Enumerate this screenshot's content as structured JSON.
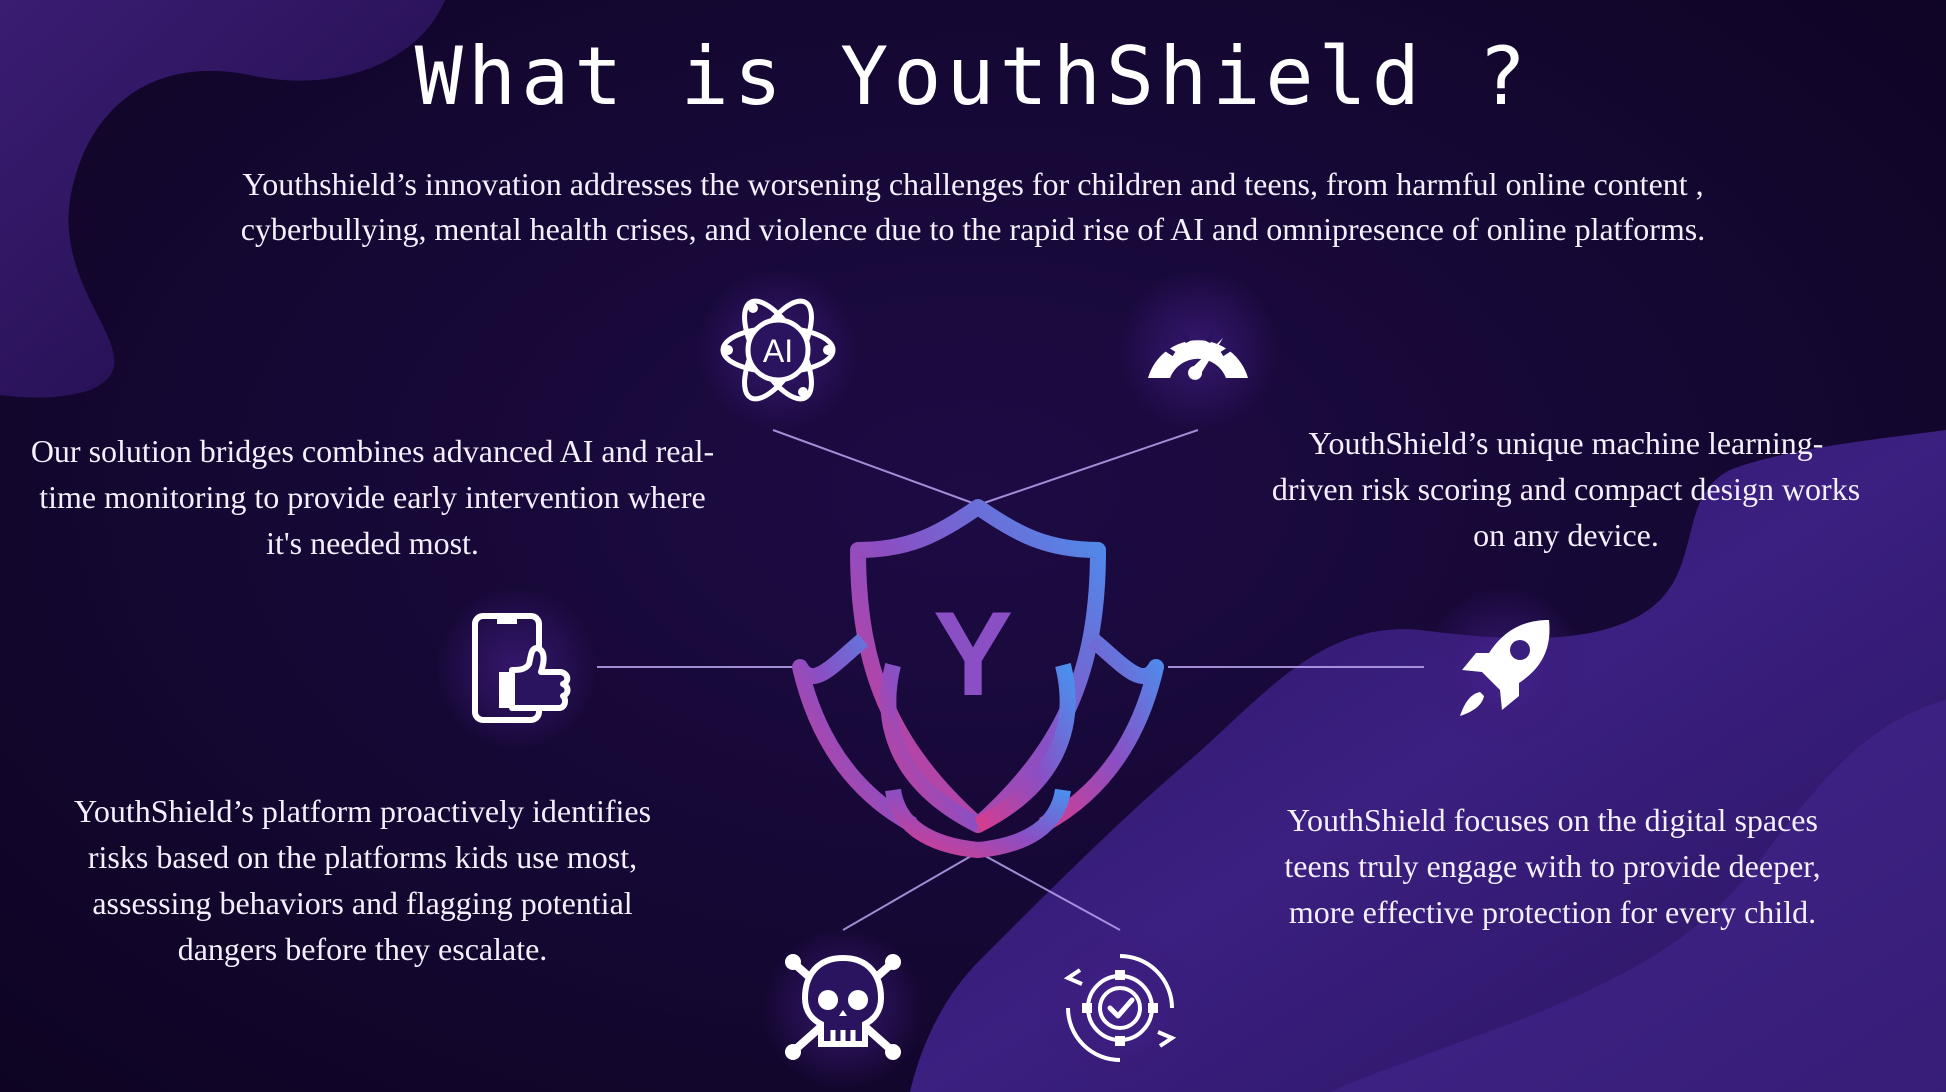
{
  "page": {
    "title": "What is YouthShield ?",
    "intro": "Youthshield’s innovation addresses the worsening challenges for children and teens, from harmful online content , cyberbullying, mental health crises, and violence due to the rapid rise of AI and omnipresence of online platforms."
  },
  "logo": {
    "letter": "Y",
    "gradient_start": "#d63c8e",
    "gradient_end": "#4a90ee"
  },
  "features": {
    "ai": "Our solution bridges combines advanced AI and real-time monitoring to provide early intervention where it's needed most.",
    "ml": "YouthShield’s unique machine learning-driven risk scoring and compact design works on any device.",
    "platform": "YouthShield’s platform proactively identifies risks based on the platforms kids use most, assessing behaviors and flagging potential dangers before they escalate.",
    "focus": "YouthShield focuses on the digital spaces teens truly engage with to provide deeper, more effective protection for every child."
  },
  "icons": {
    "ai": {
      "name": "ai-atom-icon",
      "label": "AI"
    },
    "gauge": {
      "name": "speedometer-icon"
    },
    "phone": {
      "name": "phone-thumbs-up-icon"
    },
    "rocket": {
      "name": "rocket-icon"
    },
    "skull": {
      "name": "skull-crossbones-icon"
    },
    "gear": {
      "name": "gear-check-icon"
    }
  },
  "colors": {
    "background": "#14072e",
    "blob": "#3b1f7e",
    "connector": "#b8a4f0",
    "text": "#ffffff"
  }
}
